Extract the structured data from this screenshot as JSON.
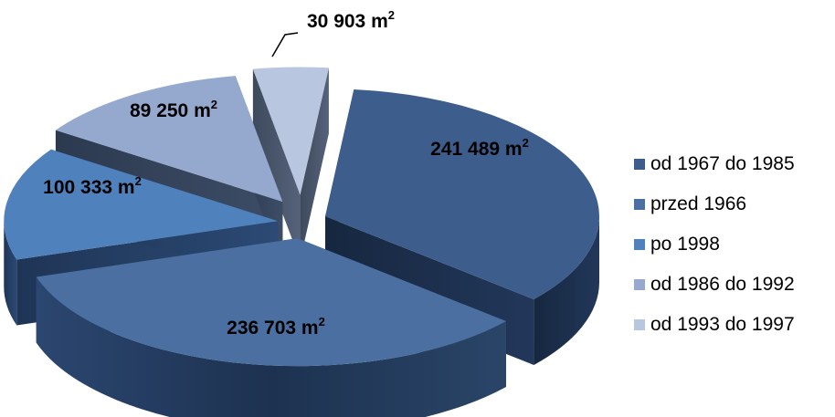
{
  "chart_data": {
    "type": "pie",
    "style": "3d-exploded",
    "unit": "m²",
    "slices": [
      {
        "label": "od 1967 do 1985",
        "value": 241489,
        "value_label": "241 489 m",
        "value_sup": "2",
        "color": "#3d5e8c"
      },
      {
        "label": "przed 1966",
        "value": 236703,
        "value_label": "236 703 m",
        "value_sup": "2",
        "color": "#4a6fa0"
      },
      {
        "label": "po 1998",
        "value": 100333,
        "value_label": "100 333 m",
        "value_sup": "2",
        "color": "#4f81bd"
      },
      {
        "label": "od 1986 do 1992",
        "value": 89250,
        "value_label": "89 250 m",
        "value_sup": "2",
        "color": "#95a9cf"
      },
      {
        "label": "od 1993 do 1997",
        "value": 30903,
        "value_label": "30 903 m",
        "value_sup": "2",
        "color": "#b9c6df"
      }
    ],
    "legend_position": "right"
  }
}
